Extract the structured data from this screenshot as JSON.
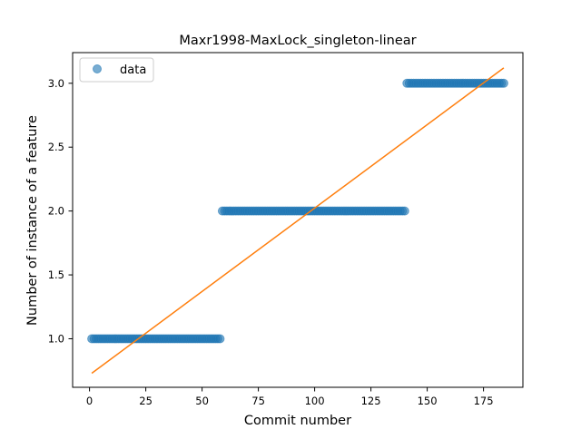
{
  "chart_data": {
    "type": "scatter",
    "title": "Maxr1998-MaxLock_singleton-linear",
    "xlabel": "Commit number",
    "ylabel": "Number of instance of a feature",
    "xlim": [
      -7.5,
      192.5
    ],
    "ylim": [
      0.62,
      3.24
    ],
    "xticks": [
      0,
      25,
      50,
      75,
      100,
      125,
      150,
      175
    ],
    "yticks": [
      1.0,
      1.5,
      2.0,
      2.5,
      3.0
    ],
    "xtick_labels": [
      "0",
      "25",
      "50",
      "75",
      "100",
      "125",
      "150",
      "175"
    ],
    "ytick_labels": [
      "1.0",
      "1.5",
      "2.0",
      "2.5",
      "3.0"
    ],
    "grid": false,
    "legend": {
      "position": "upper-left",
      "entries": [
        "data"
      ]
    },
    "series": [
      {
        "name": "data",
        "kind": "scatter",
        "color": "#1f77b4",
        "segments": [
          {
            "x_start": 1,
            "x_end": 58,
            "y": 1.0
          },
          {
            "x_start": 59,
            "x_end": 140,
            "y": 2.0
          },
          {
            "x_start": 141,
            "x_end": 184,
            "y": 3.0
          }
        ]
      },
      {
        "kind": "line",
        "color": "#ff7f0e",
        "x": [
          1,
          184
        ],
        "y": [
          0.73,
          3.12
        ]
      }
    ]
  }
}
